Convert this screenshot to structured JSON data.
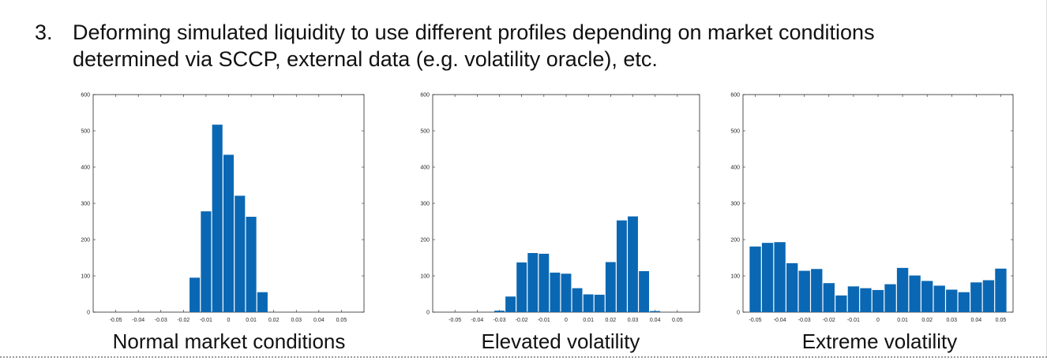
{
  "heading": {
    "number": "3.",
    "line1": "Deforming simulated liquidity to use different profiles depending on market conditions",
    "line2": "determined via SCCP, external data (e.g. volatility oracle), etc."
  },
  "colors": {
    "bar": "#0a67b3",
    "axis": "#262626"
  },
  "chart_data": [
    {
      "type": "bar",
      "caption": "Normal market conditions",
      "xlim": [
        -0.06,
        0.06
      ],
      "ylim": [
        0,
        600
      ],
      "xticks": [
        "-0.05",
        "-0.04",
        "-0.03",
        "-0.02",
        "-0.01",
        "0",
        "0.01",
        "0.02",
        "0.03",
        "0.04",
        "0.05"
      ],
      "yticks": [
        "0",
        "100",
        "200",
        "300",
        "400",
        "500",
        "600"
      ],
      "bin_width": 0.005,
      "x": [
        -0.015,
        -0.01,
        -0.005,
        0.0,
        0.005,
        0.01,
        0.015
      ],
      "values": [
        95,
        278,
        517,
        434,
        321,
        263,
        55
      ]
    },
    {
      "type": "bar",
      "caption": "Elevated volatility",
      "xlim": [
        -0.06,
        0.06
      ],
      "ylim": [
        0,
        600
      ],
      "xticks": [
        "-0.05",
        "-0.04",
        "-0.03",
        "-0.02",
        "-0.01",
        "0",
        "0.01",
        "0.02",
        "0.03",
        "0.04",
        "0.05"
      ],
      "yticks": [
        "0",
        "100",
        "200",
        "300",
        "400",
        "500",
        "600"
      ],
      "bin_width": 0.005,
      "x": [
        -0.03,
        -0.025,
        -0.02,
        -0.015,
        -0.01,
        -0.005,
        0.0,
        0.005,
        0.01,
        0.015,
        0.02,
        0.025,
        0.03,
        0.035,
        0.04
      ],
      "values": [
        4,
        43,
        137,
        163,
        161,
        109,
        106,
        66,
        49,
        48,
        138,
        253,
        264,
        113,
        3
      ]
    },
    {
      "type": "bar",
      "caption": "Extreme volatility",
      "xlim": [
        -0.055,
        0.055
      ],
      "ylim": [
        0,
        600
      ],
      "xticks": [
        "-0.05",
        "-0.04",
        "-0.03",
        "-0.02",
        "-0.01",
        "0",
        "0.01",
        "0.02",
        "0.03",
        "0.04",
        "0.05"
      ],
      "yticks": [
        "0",
        "100",
        "200",
        "300",
        "400",
        "500",
        "600"
      ],
      "bin_width": 0.005,
      "x": [
        -0.05,
        -0.045,
        -0.04,
        -0.035,
        -0.03,
        -0.025,
        -0.02,
        -0.015,
        -0.01,
        -0.005,
        0.0,
        0.005,
        0.01,
        0.015,
        0.02,
        0.025,
        0.03,
        0.035,
        0.04,
        0.045,
        0.05
      ],
      "values": [
        181,
        191,
        193,
        135,
        114,
        119,
        80,
        46,
        71,
        66,
        61,
        77,
        122,
        101,
        86,
        73,
        62,
        55,
        82,
        88,
        120
      ]
    }
  ]
}
